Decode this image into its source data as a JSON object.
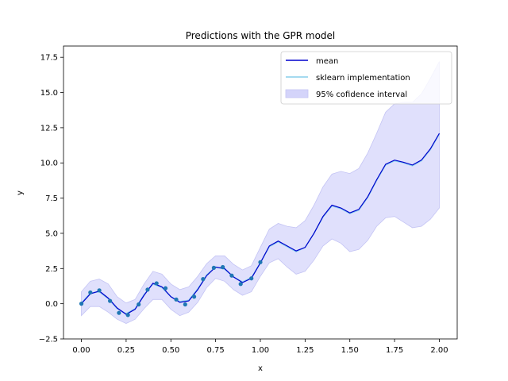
{
  "chart_data": {
    "type": "line",
    "title": "Predictions with the GPR model",
    "xlabel": "x",
    "ylabel": "y",
    "xlim": [
      -0.1,
      2.1
    ],
    "ylim": [
      -2.5,
      18.3
    ],
    "xticks": [
      0.0,
      0.25,
      0.5,
      0.75,
      1.0,
      1.25,
      1.5,
      1.75,
      2.0
    ],
    "xtick_labels": [
      "0.00",
      "0.25",
      "0.50",
      "0.75",
      "1.00",
      "1.25",
      "1.50",
      "1.75",
      "2.00"
    ],
    "yticks": [
      -2.5,
      0.0,
      2.5,
      5.0,
      7.5,
      10.0,
      12.5,
      15.0,
      17.5
    ],
    "ytick_labels": [
      "−2.5",
      "0.0",
      "2.5",
      "5.0",
      "7.5",
      "10.0",
      "12.5",
      "15.0",
      "17.5"
    ],
    "grid": false,
    "legend_position": "top-right",
    "legend": [
      {
        "label": "mean",
        "kind": "line",
        "color": "#0000cd"
      },
      {
        "label": "sklearn implementation",
        "kind": "line",
        "color": "#87ceeb"
      },
      {
        "label": "95% cofidence interval",
        "kind": "patch",
        "color": "#d4d4fa"
      }
    ],
    "colors": {
      "mean": "#0000cd",
      "sklearn": "#87ceeb",
      "band_fill": "#e0e0fc",
      "band_edge": "#c4c4f4",
      "points": "#1f77b4"
    },
    "curve": {
      "x": [
        0,
        0.05,
        0.1,
        0.15,
        0.2,
        0.25,
        0.3,
        0.35,
        0.4,
        0.45,
        0.5,
        0.55,
        0.6,
        0.65,
        0.7,
        0.75,
        0.8,
        0.85,
        0.9,
        0.95,
        1.0,
        1.05,
        1.1,
        1.15,
        1.2,
        1.25,
        1.3,
        1.35,
        1.4,
        1.45,
        1.5,
        1.55,
        1.6,
        1.65,
        1.7,
        1.75,
        1.8,
        1.85,
        1.9,
        1.95,
        2.0
      ],
      "mean": [
        0.0,
        0.7,
        0.9,
        0.4,
        -0.3,
        -0.75,
        -0.4,
        0.6,
        1.45,
        1.2,
        0.5,
        0.1,
        0.2,
        1.0,
        2.0,
        2.6,
        2.5,
        1.9,
        1.5,
        1.8,
        2.9,
        4.1,
        4.45,
        4.1,
        3.75,
        4.0,
        5.0,
        6.2,
        7.0,
        6.8,
        6.45,
        6.7,
        7.6,
        8.8,
        9.9,
        10.2,
        10.05,
        9.85,
        10.2,
        11.0,
        12.1
      ],
      "sklearn": [
        0.05,
        0.75,
        0.85,
        0.35,
        -0.35,
        -0.7,
        -0.35,
        0.65,
        1.4,
        1.15,
        0.5,
        0.15,
        0.25,
        1.05,
        2.05,
        2.6,
        2.45,
        1.9,
        1.55,
        1.85,
        2.9,
        4.05,
        4.4,
        4.05,
        3.7,
        4.0,
        5.0,
        6.15,
        6.95,
        6.75,
        6.4,
        6.65,
        7.55,
        8.75,
        9.85,
        10.15,
        10.0,
        9.8,
        10.15,
        10.95,
        12.05
      ],
      "lower": [
        -0.85,
        -0.2,
        -0.2,
        -0.6,
        -1.1,
        -1.4,
        -1.1,
        -0.35,
        0.3,
        0.3,
        -0.4,
        -0.85,
        -0.6,
        0.1,
        1.15,
        1.8,
        1.6,
        1.0,
        0.6,
        0.85,
        1.95,
        2.9,
        3.2,
        2.6,
        2.1,
        2.3,
        3.1,
        4.1,
        4.6,
        4.3,
        3.7,
        3.85,
        4.5,
        5.5,
        6.1,
        6.2,
        5.8,
        5.4,
        5.5,
        6.0,
        6.8
      ],
      "upper": [
        0.85,
        1.6,
        1.75,
        1.4,
        0.5,
        0.05,
        0.3,
        1.4,
        2.3,
        2.1,
        1.4,
        1.0,
        1.2,
        1.95,
        2.85,
        3.4,
        3.4,
        2.8,
        2.4,
        2.7,
        4.0,
        5.3,
        5.7,
        5.5,
        5.4,
        5.9,
        7.0,
        8.3,
        9.2,
        9.4,
        9.25,
        9.6,
        10.7,
        12.1,
        13.6,
        14.2,
        14.3,
        14.3,
        14.9,
        16.0,
        17.2
      ]
    },
    "observations": {
      "x": [
        0.0,
        0.05,
        0.1,
        0.16,
        0.21,
        0.26,
        0.32,
        0.37,
        0.42,
        0.47,
        0.53,
        0.58,
        0.63,
        0.68,
        0.74,
        0.79,
        0.84,
        0.89,
        0.95,
        1.0
      ],
      "y": [
        0.0,
        0.8,
        0.95,
        0.2,
        -0.65,
        -0.8,
        -0.05,
        1.0,
        1.45,
        1.1,
        0.3,
        -0.05,
        0.5,
        1.75,
        2.55,
        2.6,
        2.0,
        1.4,
        1.8,
        2.95
      ]
    }
  }
}
